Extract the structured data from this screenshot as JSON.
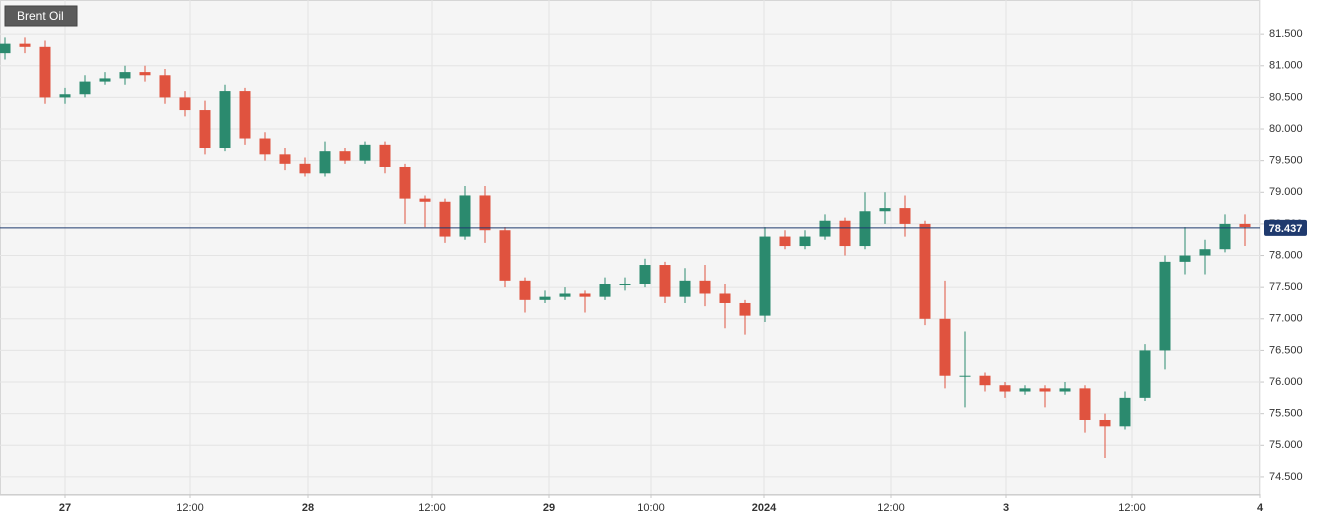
{
  "chart_data": {
    "type": "candlestick",
    "title": "Brent Oil",
    "x": [
      -6,
      -4,
      -2,
      0,
      2,
      4,
      6,
      8,
      10,
      12,
      14,
      16,
      18,
      20,
      22,
      24,
      26,
      28,
      30,
      32,
      34,
      36,
      38,
      40,
      42,
      44,
      46,
      48,
      50,
      52,
      54,
      56,
      58,
      60,
      62,
      64,
      66,
      68,
      70,
      72,
      74,
      76,
      78,
      80,
      82,
      84,
      86,
      88,
      90,
      92,
      94,
      96,
      98,
      100,
      102,
      104,
      106,
      108,
      110,
      112,
      114,
      116,
      118
    ],
    "open": [
      81.2,
      81.35,
      81.3,
      80.5,
      80.55,
      80.75,
      80.8,
      80.9,
      80.85,
      80.5,
      80.3,
      79.7,
      80.6,
      79.85,
      79.6,
      79.45,
      79.3,
      79.65,
      79.5,
      79.75,
      79.4,
      78.9,
      78.85,
      78.3,
      78.95,
      78.4,
      77.6,
      77.3,
      77.35,
      77.4,
      77.35,
      77.55,
      77.55,
      77.85,
      77.35,
      77.6,
      77.4,
      77.25,
      77.05,
      78.3,
      78.15,
      78.3,
      78.55,
      78.15,
      78.7,
      78.75,
      78.5,
      77.0,
      76.1,
      76.1,
      75.95,
      75.85,
      75.9,
      75.85,
      75.9,
      75.4,
      75.3,
      75.75,
      76.5,
      77.9,
      78.0,
      78.1,
      78.5
    ],
    "high": [
      81.45,
      81.45,
      81.4,
      80.65,
      80.85,
      80.9,
      81.0,
      81.0,
      80.95,
      80.6,
      80.45,
      80.7,
      80.65,
      79.95,
      79.7,
      79.55,
      79.8,
      79.7,
      79.8,
      79.8,
      79.45,
      78.95,
      78.9,
      79.1,
      79.1,
      78.45,
      77.65,
      77.45,
      77.5,
      77.45,
      77.65,
      77.65,
      77.95,
      77.9,
      77.8,
      77.85,
      77.55,
      77.3,
      78.45,
      78.4,
      78.4,
      78.65,
      78.6,
      79.0,
      79.0,
      78.95,
      78.55,
      77.6,
      76.8,
      76.15,
      76.0,
      75.95,
      75.95,
      76.0,
      75.95,
      75.5,
      75.85,
      76.6,
      78.0,
      78.45,
      78.25,
      78.65,
      78.65
    ],
    "low": [
      81.1,
      81.2,
      80.4,
      80.4,
      80.5,
      80.7,
      80.7,
      80.75,
      80.4,
      80.2,
      79.6,
      79.65,
      79.75,
      79.5,
      79.35,
      79.25,
      79.25,
      79.45,
      79.45,
      79.3,
      78.5,
      78.45,
      78.2,
      78.25,
      78.2,
      77.5,
      77.1,
      77.25,
      77.3,
      77.1,
      77.3,
      77.45,
      77.5,
      77.25,
      77.25,
      77.2,
      76.85,
      76.75,
      76.95,
      78.1,
      78.1,
      78.25,
      78.0,
      78.1,
      78.5,
      78.3,
      76.9,
      75.9,
      75.6,
      75.85,
      75.75,
      75.8,
      75.6,
      75.8,
      75.2,
      74.8,
      75.25,
      75.7,
      76.2,
      77.7,
      77.7,
      78.05,
      78.15
    ],
    "close": [
      81.35,
      81.3,
      80.5,
      80.55,
      80.75,
      80.8,
      80.9,
      80.85,
      80.5,
      80.3,
      79.7,
      80.6,
      79.85,
      79.6,
      79.45,
      79.3,
      79.65,
      79.5,
      79.75,
      79.4,
      78.9,
      78.85,
      78.3,
      78.95,
      78.4,
      77.6,
      77.3,
      77.35,
      77.4,
      77.35,
      77.55,
      77.55,
      77.85,
      77.35,
      77.6,
      77.4,
      77.25,
      77.05,
      78.3,
      78.15,
      78.3,
      78.55,
      78.15,
      78.7,
      78.75,
      78.5,
      77.0,
      76.1,
      76.1,
      75.95,
      75.85,
      75.9,
      75.85,
      75.9,
      75.4,
      75.3,
      75.75,
      76.5,
      77.9,
      78.0,
      78.1,
      78.5,
      78.45
    ],
    "up_color": "#2b8a6e",
    "down_color": "#e0533f",
    "last_price": 78.437,
    "last_price_color": "#1f3a6e",
    "xlim": [
      -6.5,
      119.5
    ],
    "xticks": [
      {
        "value": 0,
        "label": "27"
      },
      {
        "value": 12.5,
        "label": "12:00"
      },
      {
        "value": 24.3,
        "label": "28"
      },
      {
        "value": 36.7,
        "label": "12:00"
      },
      {
        "value": 48.4,
        "label": "29"
      },
      {
        "value": 58.6,
        "label": "10:00"
      },
      {
        "value": 69.9,
        "label": "2024"
      },
      {
        "value": 82.6,
        "label": "12:00"
      },
      {
        "value": 94.1,
        "label": "3"
      },
      {
        "value": 106.7,
        "label": "12:00"
      },
      {
        "value": 119.5,
        "label": "4"
      }
    ],
    "ylim": [
      74.23,
      82.04
    ],
    "yticks": [
      {
        "value": 74.5,
        "label": "74.500"
      },
      {
        "value": 75,
        "label": "75.000"
      },
      {
        "value": 75.5,
        "label": "75.500"
      },
      {
        "value": 76,
        "label": "76.000"
      },
      {
        "value": 76.5,
        "label": "76.500"
      },
      {
        "value": 77,
        "label": "77.000"
      },
      {
        "value": 77.5,
        "label": "77.500"
      },
      {
        "value": 78,
        "label": "78.000"
      },
      {
        "value": 78.5,
        "label": "78.500"
      },
      {
        "value": 79,
        "label": "79.000"
      },
      {
        "value": 79.5,
        "label": "79.500"
      },
      {
        "value": 80,
        "label": "80.000"
      },
      {
        "value": 80.5,
        "label": "80.500"
      },
      {
        "value": 81,
        "label": "81.000"
      },
      {
        "value": 81.5,
        "label": "81.500"
      }
    ],
    "grid": true
  }
}
